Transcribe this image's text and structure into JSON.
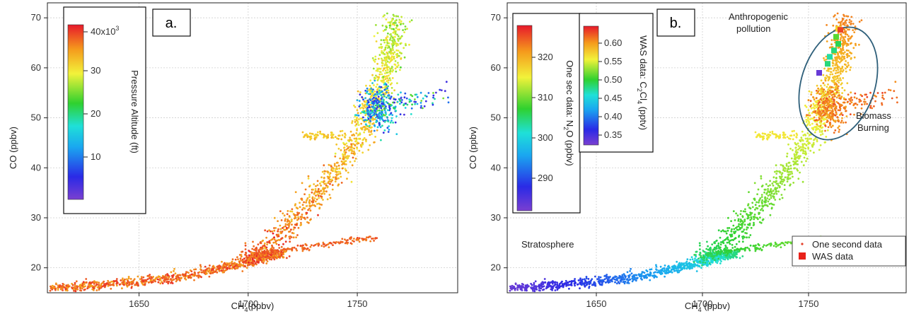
{
  "chart_data": [
    {
      "type": "scatter",
      "panel_label": "a.",
      "xlabel_main": "CH",
      "xlabel_sub": "4",
      "xlabel_rest": "(ppbv)",
      "ylabel": "CO (ppbv)",
      "xlim": [
        1608,
        1796
      ],
      "ylim": [
        15,
        73
      ],
      "x_ticks": [
        "1650",
        "1700",
        "1750"
      ],
      "y_ticks": [
        "20",
        "30",
        "40",
        "50",
        "60",
        "70"
      ],
      "grid": true,
      "colorbar": {
        "label": "Pressure Altitude (ft)",
        "range": [
          0,
          43000
        ],
        "ticks": [
          "40x10",
          "30",
          "20",
          "10"
        ],
        "tick_sup": "3",
        "colormap": "rainbow"
      },
      "color_variable": "Pressure Altitude (ft)"
    },
    {
      "type": "scatter",
      "panel_label": "b.",
      "xlabel_main": "CH",
      "xlabel_sub": "4",
      "xlabel_rest": " (ppbv)",
      "ylabel": "CO (ppbv)",
      "xlim": [
        1608,
        1796
      ],
      "ylim": [
        15,
        73
      ],
      "x_ticks": [
        "1650",
        "1700",
        "1750"
      ],
      "y_ticks": [
        "20",
        "30",
        "40",
        "50",
        "60",
        "70"
      ],
      "grid": true,
      "colorbar_n2o": {
        "label_pre": "One sec data: N",
        "label_sub": "2",
        "label_post": "O (ppbv)",
        "range": [
          282,
          328
        ],
        "ticks": [
          "320",
          "310",
          "300",
          "290"
        ],
        "colormap": "rainbow"
      },
      "colorbar_was": {
        "label_pre": "WAS data: C",
        "label_sub1": "2",
        "label_mid": "Cl",
        "label_sub2": "4",
        "label_post": " (pptv)",
        "range": [
          0.31,
          0.635
        ],
        "ticks": [
          "0.60",
          "0.55",
          "0.50",
          "0.45",
          "0.40",
          "0.35"
        ],
        "colormap": "rainbow"
      },
      "annotations": [
        "Anthropogenic",
        "pollution",
        "Biomass",
        "Burning",
        "Stratosphere"
      ],
      "legend": {
        "position": "bottom-right",
        "entries": [
          "One second data",
          "WAS data"
        ]
      },
      "was_points": [
        {
          "x": 1764,
          "y": 67.8,
          "value": 0.56
        },
        {
          "x": 1765,
          "y": 67.6,
          "value": 0.62
        },
        {
          "x": 1763,
          "y": 66.2,
          "value": 0.5
        },
        {
          "x": 1764,
          "y": 64.8,
          "value": 0.48
        },
        {
          "x": 1762,
          "y": 63.5,
          "value": 0.47
        },
        {
          "x": 1760,
          "y": 62.2,
          "value": 0.46
        },
        {
          "x": 1759,
          "y": 60.8,
          "value": 0.47
        },
        {
          "x": 1755,
          "y": 59.0,
          "value": 0.32
        }
      ]
    }
  ],
  "colors": {
    "axis": "#222222",
    "grid": "#cfcfcf",
    "ellipse": "#2e5f7a",
    "one_second_marker": "#e4402a",
    "was_marker": "#e8211a"
  }
}
